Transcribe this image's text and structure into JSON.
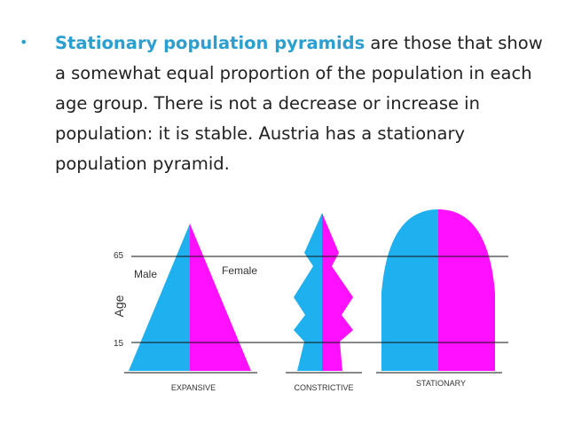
{
  "slide": {
    "bullet": {
      "highlight": "Stationary population pyramids",
      "rest": " are those that show a somewhat equal proportion of the population in each age group. There is not a decrease or increase in population: it is stable. Austria has a stationary population pyramid."
    }
  },
  "diagram": {
    "colors": {
      "male": "#1fb0f0",
      "female": "#ff10ff",
      "line": "#111111"
    },
    "age_axis_label": "Age",
    "age_ticks": [
      "65",
      "15"
    ],
    "legend": {
      "male": "Male",
      "female": "Female"
    },
    "pyramids": [
      {
        "name": "EXPANSIVE"
      },
      {
        "name": "CONSTRICTIVE"
      },
      {
        "name": "STATIONARY"
      }
    ]
  }
}
